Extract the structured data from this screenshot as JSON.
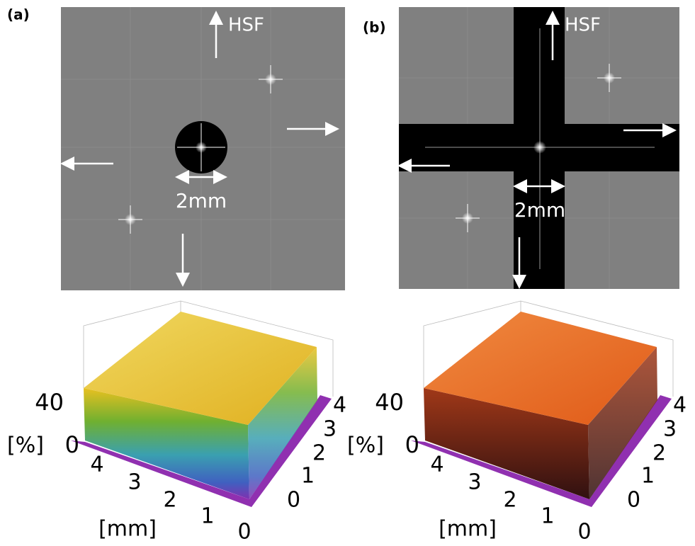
{
  "panels": [
    {
      "label": "(a)",
      "direction": "HSF",
      "scale": "2mm",
      "plot": {
        "z_ticks": [
          40,
          0
        ],
        "z_unit": "[%]",
        "x_ticks": [
          4,
          3,
          2,
          1,
          0
        ],
        "x_unit": "[mm]",
        "y_ticks": [
          4,
          3,
          2,
          1,
          0
        ]
      }
    },
    {
      "label": "(b)",
      "direction": "HSF",
      "scale": "2mm",
      "plot": {
        "z_ticks": [
          40,
          0
        ],
        "z_unit": "[%]",
        "x_ticks": [
          4,
          3,
          2,
          1,
          0
        ],
        "x_unit": "[mm]",
        "y_ticks": [
          4,
          3,
          2,
          1,
          0
        ]
      }
    }
  ]
}
